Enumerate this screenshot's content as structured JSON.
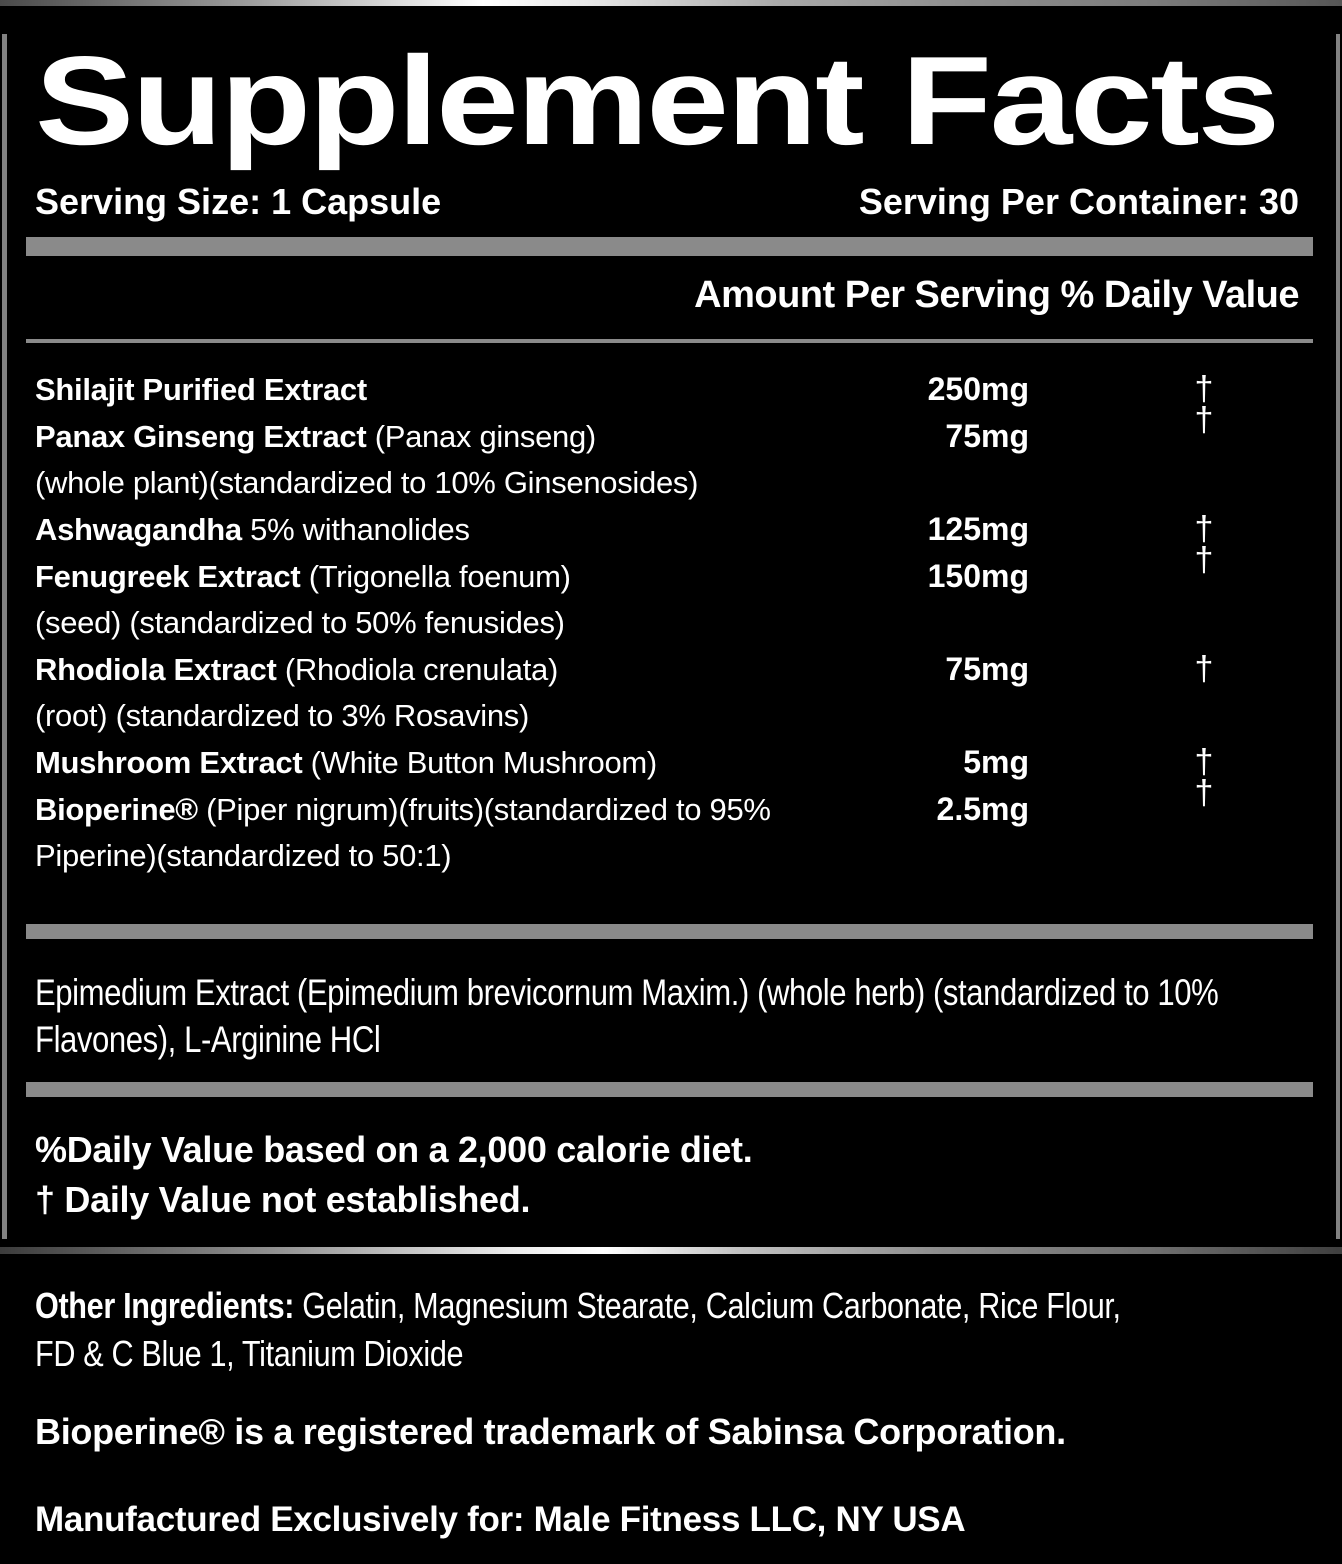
{
  "title": "Supplement Facts",
  "serving": {
    "size_label": "Serving Size: 1 Capsule",
    "per_container_label": "Serving Per Container: 30"
  },
  "table": {
    "header": "Amount Per Serving % Daily Value",
    "rows": [
      {
        "name": "Shilajit Purified Extract",
        "detail": "",
        "amount": "250mg",
        "dv": "†"
      },
      {
        "name": "Panax Ginseng Extract",
        "detail": " (Panax ginseng)",
        "amount": "75mg",
        "dv": "†",
        "cont": "(whole plant)(standardized to 10% Ginsenosides)"
      },
      {
        "name": "Ashwagandha",
        "detail": " 5% withanolides",
        "amount": "125mg",
        "dv": "†"
      },
      {
        "name": "Fenugreek Extract",
        "detail": " (Trigonella foenum)",
        "amount": "150mg",
        "dv": "†",
        "cont": "(seed) (standardized to 50% fenusides)"
      },
      {
        "name": "Rhodiola Extract",
        "detail": " (Rhodiola crenulata)",
        "amount": "75mg",
        "dv": "†",
        "cont": "(root) (standardized to 3% Rosavins)"
      },
      {
        "name": "Mushroom Extract",
        "detail": " (White Button Mushroom)",
        "amount": "5mg",
        "dv": "†"
      },
      {
        "name": "Bioperine®",
        "detail": " (Piper nigrum)(fruits)(standardized to 95%",
        "amount": "2.5mg",
        "dv": "†",
        "cont": "Piperine)(standardized to 50:1)"
      }
    ]
  },
  "proprietary": {
    "lines": [
      "Epimedium Extract (Epimedium brevicornum Maxim.) (whole herb) (standardized to 10%",
      "Flavones), L-Arginine HCl"
    ]
  },
  "notes": {
    "daily_value": "%Daily Value based on a 2,000 calorie diet.",
    "not_established": "† Daily Value not established."
  },
  "other_ingredients": {
    "label": "Other Ingredients:",
    "lines": [
      " Gelatin, Magnesium Stearate, Calcium Carbonate, Rice Flour,",
      "FD & C Blue 1, Titanium Dioxide"
    ]
  },
  "trademark": "Bioperine® is a registered trademark of Sabinsa Corporation.",
  "manufactured": "Manufactured Exclusively for: Male Fitness LLC, NY USA",
  "colors": {
    "background": "#000000",
    "text": "#ffffff",
    "bar_gray": "#8a8a8a",
    "border_gray": "#828282"
  }
}
